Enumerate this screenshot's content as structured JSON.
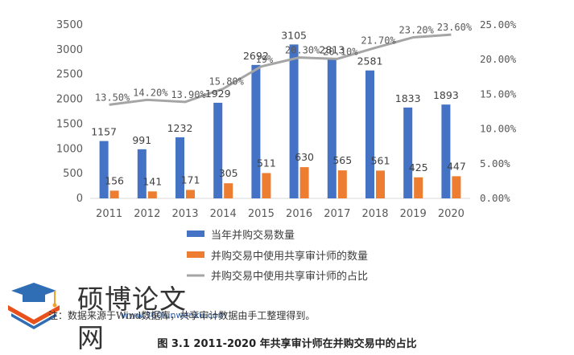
{
  "chart_data": {
    "type": "bar+line",
    "categories": [
      "2011",
      "2012",
      "2013",
      "2014",
      "2015",
      "2016",
      "2017",
      "2018",
      "2019",
      "2020"
    ],
    "series": [
      {
        "name": "当年并购交易数量",
        "type": "bar",
        "axis": "left",
        "color": "#4472C4",
        "values": [
          1157,
          991,
          1232,
          1929,
          2692,
          3105,
          2813,
          2581,
          1833,
          1893
        ],
        "labels": [
          "1157",
          "991",
          "1232",
          "1929",
          "2692",
          "3105",
          "2813",
          "2581",
          "1833",
          "1893"
        ]
      },
      {
        "name": "并购交易中使用共享审计师的数量",
        "type": "bar",
        "axis": "left",
        "color": "#ED7D31",
        "values": [
          156,
          141,
          171,
          305,
          511,
          630,
          565,
          561,
          425,
          447
        ],
        "labels": [
          "156",
          "141",
          "171",
          "305",
          "511",
          "630",
          "565",
          "561",
          "425",
          "447"
        ]
      },
      {
        "name": "并购交易中使用共享审计师的占比",
        "type": "line",
        "axis": "right",
        "color": "#A5A5A5",
        "values": [
          13.5,
          14.2,
          13.9,
          15.8,
          19.0,
          20.3,
          20.1,
          21.7,
          23.2,
          23.6
        ],
        "labels": [
          "13.50%",
          "14.20%",
          "13.90%",
          "15.80%",
          "19%",
          "20.30%",
          "20.10%",
          "21.70%",
          "23.20%",
          "23.60%"
        ]
      }
    ],
    "y_left": {
      "min": 0,
      "max": 3500,
      "ticks": [
        "0",
        "500",
        "1000",
        "1500",
        "2000",
        "2500",
        "3000",
        "3500"
      ]
    },
    "y_right": {
      "min": 0,
      "max": 25,
      "ticks": [
        "0.00%",
        "5.00%",
        "10.00%",
        "15.00%",
        "20.00%",
        "25.00%"
      ]
    },
    "grid": false,
    "legend_position": "bottom"
  },
  "note": "注：数据来源于Wind数据库，共享审计数据由手工整理得到。",
  "caption": "图 3.1  2011-2020 年共享审计师在并购交易中的占比",
  "watermark": {
    "title": "硕博论文网",
    "url": "www.360lunwenku.com"
  },
  "colors": {
    "blue": "#4472C4",
    "orange": "#ED7D31",
    "gray": "#A5A5A5"
  }
}
